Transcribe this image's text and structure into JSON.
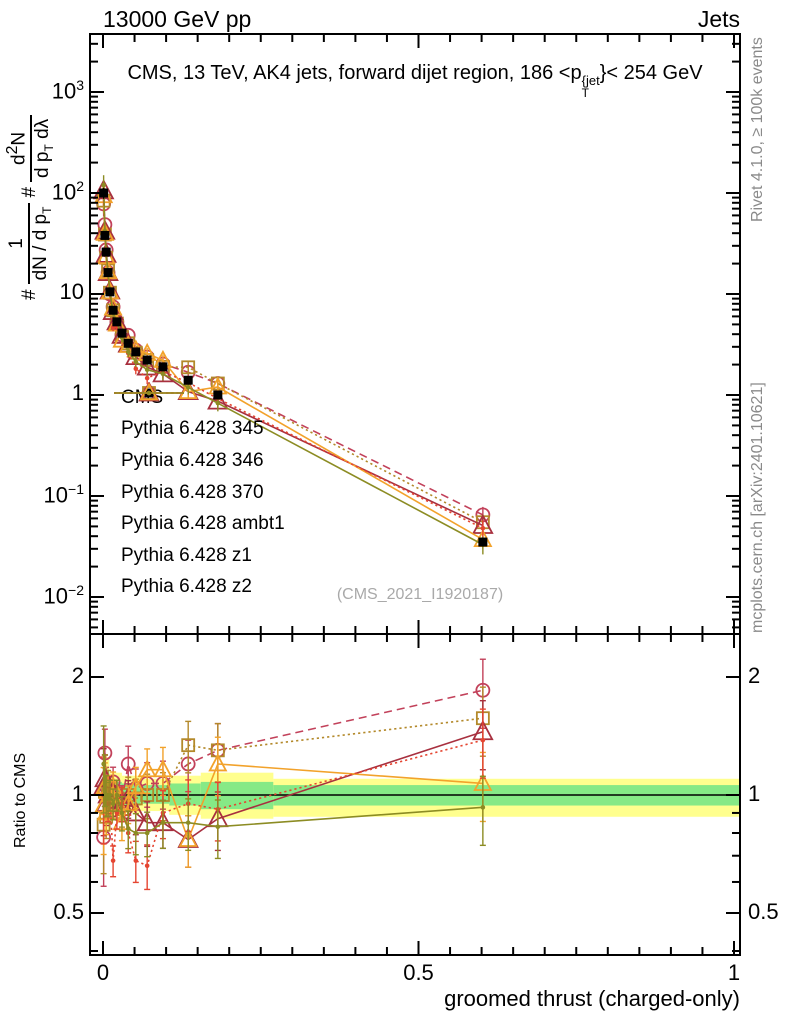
{
  "header": {
    "left": "13000 GeV pp",
    "right": "Jets"
  },
  "title": {
    "pre": "CMS, 13 TeV, AK4 jets, forward dijet region, 186 <p",
    "sup": "{jet",
    "sub": "T",
    "post": "}< 254 GeV"
  },
  "right_margin": {
    "top": "Rivet 4.1.0, ≥ 100k events",
    "bottom": "mcplots.cern.ch [arXiv:2401.10621]"
  },
  "watermark": "(CMS_2021_I1920187)",
  "main_ylabel": {
    "h1": "#",
    "f1_num": "1",
    "f1_den_a": "dN / d p",
    "f1_den_sub": "T",
    "h2": "#",
    "f2_num_a": "d",
    "f2_num_sup": "2",
    "f2_num_b": "N",
    "f2_den_a": "d p",
    "f2_den_sub": "T",
    "f2_den_b": " dλ"
  },
  "ratio_ylabel": "Ratio to CMS",
  "xlabel": "groomed thrust (charged-only)",
  "chart_data": {
    "type": "line",
    "title": "CMS, 13 TeV, AK4 jets, forward dijet region, 186 <pT^{jet}< 254 GeV",
    "xlabel": "groomed thrust (charged-only)",
    "ylabel_top": "# 1/(dN/dpT) # d2N/(dpT dλ)",
    "ylabel_bottom": "Ratio to CMS",
    "x": [
      0.001,
      0.003,
      0.005,
      0.008,
      0.011,
      0.016,
      0.022,
      0.03,
      0.04,
      0.052,
      0.07,
      0.095,
      0.135,
      0.182,
      0.602
    ],
    "err_frac": [
      0.25,
      0.15,
      0.12,
      0.1,
      0.09,
      0.09,
      0.09,
      0.1,
      0.11,
      0.12,
      0.13,
      0.14,
      0.15,
      0.17,
      0.2
    ],
    "cms": {
      "label": "CMS",
      "color": "#000000",
      "marker": "square-fill",
      "msize": 9,
      "values": [
        100,
        38,
        26,
        16.3,
        10.5,
        6.9,
        5.3,
        4.1,
        3.25,
        2.67,
        2.22,
        1.9,
        1.4,
        1.0,
        0.035
      ]
    },
    "series": [
      {
        "label": "Pythia 6.428 345",
        "color": "#c2415a",
        "line": "dashed",
        "marker": "circle-open",
        "msize": 13,
        "values": [
          78,
          48.6,
          27.3,
          16.3,
          10.0,
          7.45,
          5.3,
          3.94,
          3.9,
          2.78,
          2.38,
          2.03,
          1.68,
          1.3,
          0.065
        ],
        "ratio": [
          0.78,
          1.28,
          1.05,
          1.0,
          0.95,
          1.08,
          1.0,
          0.96,
          1.2,
          1.04,
          1.07,
          1.07,
          1.2,
          1.3,
          1.85
        ]
      },
      {
        "label": "Pythia 6.428 346",
        "color": "#b3892a",
        "line": "dotted",
        "marker": "square-open",
        "msize": 12,
        "values": [
          84,
          38.8,
          22.9,
          17.1,
          10.3,
          6.9,
          5.1,
          3.77,
          3.25,
          2.62,
          2.22,
          1.9,
          1.88,
          1.3,
          0.055
        ],
        "ratio": [
          0.84,
          1.02,
          0.88,
          1.05,
          0.98,
          1.0,
          0.96,
          0.92,
          1.0,
          0.98,
          1.0,
          1.0,
          1.34,
          1.3,
          1.57
        ]
      },
      {
        "label": "Pythia 6.428 370",
        "color": "#a8303f",
        "line": "solid",
        "marker": "triangle-open",
        "msize": 15,
        "values": [
          105,
          41.8,
          24.7,
          16.3,
          10.7,
          6.7,
          5.3,
          3.9,
          3.19,
          2.4,
          1.89,
          1.62,
          1.08,
          0.87,
          0.051
        ],
        "ratio": [
          1.05,
          1.1,
          0.95,
          1.0,
          1.02,
          0.97,
          1.0,
          0.95,
          0.98,
          0.9,
          0.85,
          0.85,
          0.77,
          0.87,
          1.45
        ]
      },
      {
        "label": "Pythia 6.428 ambt1",
        "color": "#f2a22b",
        "line": "solid",
        "marker": "triangle-open",
        "msize": 13,
        "values": [
          94,
          39.9,
          23.4,
          16.6,
          10.5,
          7.25,
          5.04,
          3.49,
          3.09,
          2.8,
          2.58,
          2.2,
          1.08,
          1.2,
          0.037
        ],
        "ratio": [
          0.94,
          1.05,
          0.9,
          1.02,
          1.0,
          1.05,
          0.95,
          0.85,
          0.95,
          1.05,
          1.16,
          1.16,
          0.77,
          1.2,
          1.07
        ]
      },
      {
        "label": "Pythia 6.428 z1",
        "color": "#e54531",
        "line": "dotted",
        "marker": "dot",
        "msize": 5,
        "values": [
          100,
          41.8,
          26,
          15.5,
          10.5,
          4.7,
          4.77,
          3.9,
          2.6,
          1.82,
          1.47,
          1.71,
          1.33,
          0.92,
          0.048
        ],
        "ratio": [
          1.0,
          1.1,
          1.0,
          0.95,
          1.0,
          0.68,
          0.9,
          0.95,
          0.8,
          0.68,
          0.66,
          0.9,
          0.95,
          0.92,
          1.38
        ]
      },
      {
        "label": "Pythia 6.428 z2",
        "color": "#8c8c23",
        "line": "solid",
        "marker": "dot",
        "msize": 5,
        "values": [
          120,
          41.8,
          26,
          16.0,
          10.5,
          6.56,
          5.3,
          3.69,
          2.67,
          2.14,
          1.78,
          1.62,
          1.19,
          0.83,
          0.033
        ],
        "ratio": [
          1.2,
          1.1,
          1.0,
          0.98,
          1.0,
          0.95,
          1.0,
          0.9,
          0.82,
          0.8,
          0.8,
          0.85,
          0.85,
          0.83,
          0.93
        ]
      }
    ],
    "ratio_bands": {
      "yellow": "#ffff8e",
      "green": "#86e986",
      "segments": [
        {
          "x0": 0.0,
          "x1": 0.01,
          "ylo": 0.8,
          "yhi": 1.25,
          "glo": 0.86,
          "ghi": 1.16
        },
        {
          "x0": 0.01,
          "x1": 0.03,
          "ylo": 0.88,
          "yhi": 1.14,
          "glo": 0.93,
          "ghi": 1.08
        },
        {
          "x0": 0.03,
          "x1": 0.06,
          "ylo": 0.9,
          "yhi": 1.12,
          "glo": 0.94,
          "ghi": 1.07
        },
        {
          "x0": 0.06,
          "x1": 0.105,
          "ylo": 0.91,
          "yhi": 1.1,
          "glo": 0.95,
          "ghi": 1.06
        },
        {
          "x0": 0.105,
          "x1": 0.155,
          "ylo": 0.89,
          "yhi": 1.12,
          "glo": 0.94,
          "ghi": 1.07
        },
        {
          "x0": 0.155,
          "x1": 0.27,
          "ylo": 0.87,
          "yhi": 1.14,
          "glo": 0.92,
          "ghi": 1.08
        },
        {
          "x0": 0.27,
          "x1": 1.0,
          "ylo": 0.88,
          "yhi": 1.1,
          "glo": 0.94,
          "ghi": 1.06
        }
      ]
    },
    "axes": {
      "x": {
        "min": 0,
        "max": 1,
        "minor_step": 0.05,
        "ticks": [
          {
            "v": 0,
            "t": "0"
          },
          {
            "v": 0.5,
            "t": "0.5"
          },
          {
            "v": 1,
            "t": "1"
          }
        ]
      },
      "y_main": {
        "type": "log",
        "range_decades": [
          -2.35,
          3.57
        ],
        "ticks": [
          {
            "v": 1000,
            "b": "10",
            "e": "3"
          },
          {
            "v": 100,
            "b": "10",
            "e": "2"
          },
          {
            "v": 10,
            "b": "10",
            "e": ""
          },
          {
            "v": 1,
            "b": "1",
            "e": ""
          },
          {
            "v": 0.1,
            "b": "10",
            "e": "−1"
          },
          {
            "v": 0.01,
            "b": "10",
            "e": "−2"
          }
        ]
      },
      "y_ratio": {
        "type": "log",
        "range": [
          0.39,
          2.55
        ],
        "ticks": [
          {
            "v": 2,
            "t": "2"
          },
          {
            "v": 1,
            "t": "1"
          },
          {
            "v": 0.5,
            "t": "0.5"
          }
        ],
        "minors": [
          0.4,
          0.5,
          0.6,
          0.7,
          0.8,
          0.9,
          2
        ]
      }
    },
    "legend_position": "middle-left",
    "grid": false
  }
}
